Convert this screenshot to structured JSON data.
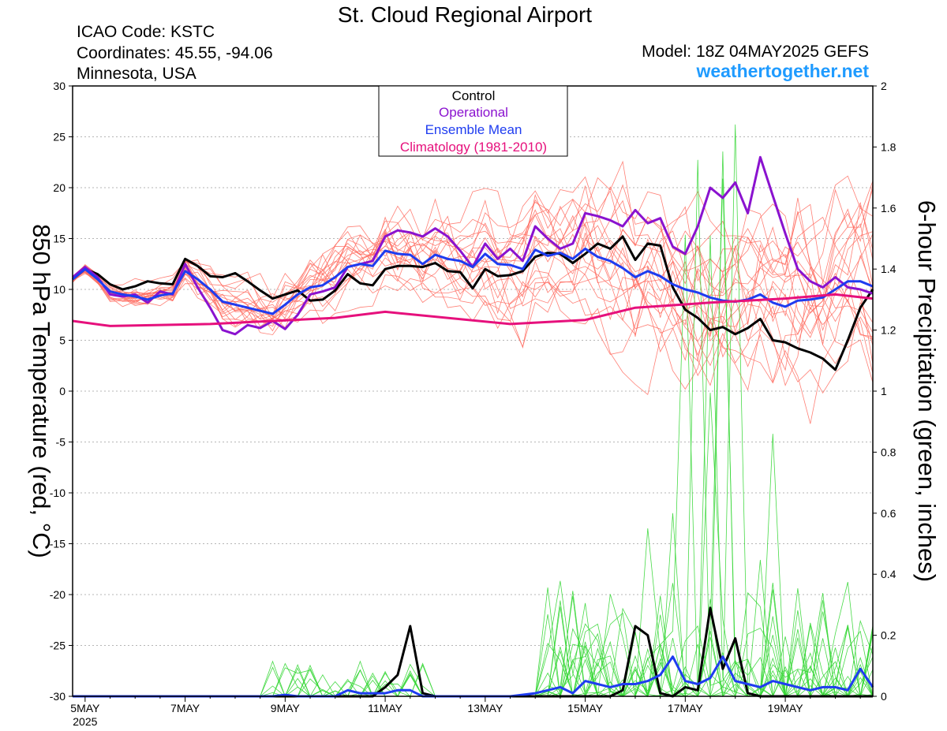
{
  "header": {
    "title": "St. Cloud Regional Airport",
    "icao": "ICAO Code: KSTC",
    "coords": "Coordinates: 45.55, -94.06",
    "region": "Minnesota, USA",
    "model": "Model: 18Z 04MAY2025 GEFS",
    "brand": "weathertogether.net"
  },
  "legend": {
    "items": [
      {
        "label": "Control",
        "color": "#000000"
      },
      {
        "label": "Operational",
        "color": "#8a12cf"
      },
      {
        "label": "Ensemble Mean",
        "color": "#1e3cf0"
      },
      {
        "label": "Climatology (1981-2010)",
        "color": "#e6107c"
      }
    ]
  },
  "colors": {
    "members_temp": "#ff6a5e",
    "members_precip": "#33d633",
    "control": "#000000",
    "operational": "#8a12cf",
    "mean": "#1e3cf0",
    "climatology": "#e6107c"
  },
  "chart_data": {
    "type": "line",
    "xlabel": "",
    "ylabel_left": "850 hPa Temperature (red, °C)",
    "ylabel_right": "6-hour Precipitation (green, inches)",
    "x_unit": "days after 00Z 5 May 2025 (6-hourly)",
    "x_range": [
      -0.25,
      15.75
    ],
    "ylim_left": [
      -30,
      30
    ],
    "ylim_right": [
      0,
      2
    ],
    "grid": "horizontal dotted",
    "x_ticks": [
      {
        "x": 0,
        "label": "5MAY",
        "label2": "2025"
      },
      {
        "x": 2,
        "label": "7MAY",
        "label2": ""
      },
      {
        "x": 4,
        "label": "9MAY",
        "label2": ""
      },
      {
        "x": 6,
        "label": "11MAY",
        "label2": ""
      },
      {
        "x": 8,
        "label": "13MAY",
        "label2": ""
      },
      {
        "x": 10,
        "label": "15MAY",
        "label2": ""
      },
      {
        "x": 12,
        "label": "17MAY",
        "label2": ""
      },
      {
        "x": 14,
        "label": "19MAY",
        "label2": ""
      }
    ],
    "y_ticks_left": [
      "30",
      "25",
      "20",
      "15",
      "10",
      "5",
      "0",
      "-5",
      "-10",
      "-15",
      "-20",
      "-25",
      "-30"
    ],
    "y_ticks_right": [
      "2",
      "1.8",
      "1.6",
      "1.4",
      "1.2",
      "1",
      "0.8",
      "0.6",
      "0.4",
      "0.2",
      "0"
    ],
    "series": [
      {
        "name": "Control",
        "axis": "left",
        "points": [
          [
            -0.25,
            11
          ],
          [
            0,
            12
          ],
          [
            0.25,
            11.5
          ],
          [
            0.5,
            10.5
          ],
          [
            0.75,
            10
          ],
          [
            1,
            10.3
          ],
          [
            1.25,
            10.8
          ],
          [
            1.5,
            10.6
          ],
          [
            1.75,
            10.5
          ],
          [
            2,
            13
          ],
          [
            2.25,
            12.3
          ],
          [
            2.5,
            11.3
          ],
          [
            2.75,
            11.2
          ],
          [
            3,
            11.6
          ],
          [
            3.25,
            10.8
          ],
          [
            3.5,
            9.9
          ],
          [
            3.75,
            9.1
          ],
          [
            4,
            9.5
          ],
          [
            4.25,
            9.9
          ],
          [
            4.5,
            8.9
          ],
          [
            4.75,
            9
          ],
          [
            5,
            9.9
          ],
          [
            5.25,
            11.5
          ],
          [
            5.5,
            10.6
          ],
          [
            5.75,
            10.4
          ],
          [
            6,
            12
          ],
          [
            6.25,
            12.3
          ],
          [
            6.5,
            12.3
          ],
          [
            6.75,
            12.2
          ],
          [
            7,
            12.6
          ],
          [
            7.25,
            11.8
          ],
          [
            7.5,
            11.7
          ],
          [
            7.75,
            10.1
          ],
          [
            8,
            12
          ],
          [
            8.25,
            11.3
          ],
          [
            8.5,
            11.4
          ],
          [
            8.75,
            11.8
          ],
          [
            9,
            13.2
          ],
          [
            9.25,
            13.6
          ],
          [
            9.5,
            13.5
          ],
          [
            9.75,
            12.6
          ],
          [
            10,
            13.5
          ],
          [
            10.25,
            14.5
          ],
          [
            10.5,
            14
          ],
          [
            10.75,
            15.2
          ],
          [
            11,
            12.9
          ],
          [
            11.25,
            14.5
          ],
          [
            11.5,
            14.3
          ],
          [
            11.75,
            10.2
          ],
          [
            12,
            8
          ],
          [
            12.25,
            7.2
          ],
          [
            12.5,
            6
          ],
          [
            12.75,
            6.3
          ],
          [
            13,
            5.6
          ],
          [
            13.25,
            6.2
          ],
          [
            13.5,
            7.1
          ],
          [
            13.75,
            5
          ],
          [
            14,
            4.8
          ],
          [
            14.25,
            4.2
          ],
          [
            14.5,
            3.8
          ],
          [
            14.75,
            3.2
          ],
          [
            15,
            2.1
          ],
          [
            15.25,
            5
          ],
          [
            15.5,
            8.2
          ],
          [
            15.75,
            10
          ]
        ]
      },
      {
        "name": "Operational",
        "axis": "left",
        "points": [
          [
            -0.25,
            11.2
          ],
          [
            0,
            12.2
          ],
          [
            0.25,
            11.2
          ],
          [
            0.5,
            9.5
          ],
          [
            0.75,
            9.3
          ],
          [
            1,
            9.5
          ],
          [
            1.25,
            8.7
          ],
          [
            1.5,
            9.8
          ],
          [
            1.75,
            9.5
          ],
          [
            2,
            12.5
          ],
          [
            2.25,
            10.2
          ],
          [
            2.5,
            8.2
          ],
          [
            2.75,
            6
          ],
          [
            3,
            5.6
          ],
          [
            3.25,
            6.5
          ],
          [
            3.5,
            6.2
          ],
          [
            3.75,
            6.9
          ],
          [
            4,
            6.1
          ],
          [
            4.25,
            7.5
          ],
          [
            4.5,
            9.5
          ],
          [
            4.75,
            9.8
          ],
          [
            5,
            10.2
          ],
          [
            5.25,
            12.2
          ],
          [
            5.5,
            12.5
          ],
          [
            5.75,
            12.8
          ],
          [
            6,
            15.2
          ],
          [
            6.25,
            15.8
          ],
          [
            6.5,
            15.6
          ],
          [
            6.75,
            15.2
          ],
          [
            7,
            16
          ],
          [
            7.25,
            15.2
          ],
          [
            7.5,
            13.8
          ],
          [
            7.75,
            12.2
          ],
          [
            8,
            14.5
          ],
          [
            8.25,
            13
          ],
          [
            8.5,
            14
          ],
          [
            8.75,
            12.8
          ],
          [
            9,
            16.2
          ],
          [
            9.25,
            15
          ],
          [
            9.5,
            14
          ],
          [
            9.75,
            14.5
          ],
          [
            10,
            17.5
          ],
          [
            10.25,
            17.2
          ],
          [
            10.5,
            16.8
          ],
          [
            10.75,
            16.2
          ],
          [
            11,
            17.8
          ],
          [
            11.25,
            16.5
          ],
          [
            11.5,
            17
          ],
          [
            11.75,
            14.2
          ],
          [
            12,
            13.5
          ],
          [
            12.25,
            16.2
          ],
          [
            12.5,
            20
          ],
          [
            12.75,
            19
          ],
          [
            13,
            20.5
          ],
          [
            13.25,
            17.5
          ],
          [
            13.5,
            23
          ],
          [
            13.75,
            19.2
          ],
          [
            14,
            15.5
          ],
          [
            14.25,
            12
          ],
          [
            14.5,
            10.8
          ],
          [
            14.75,
            10.2
          ],
          [
            15,
            11.2
          ],
          [
            15.25,
            10.2
          ],
          [
            15.5,
            10
          ],
          [
            15.75,
            9.6
          ]
        ]
      },
      {
        "name": "Ensemble Mean",
        "axis": "left",
        "points": [
          [
            -0.25,
            11
          ],
          [
            0,
            12
          ],
          [
            0.25,
            11
          ],
          [
            0.5,
            9.8
          ],
          [
            0.75,
            9.5
          ],
          [
            1,
            9.3
          ],
          [
            1.25,
            9
          ],
          [
            1.5,
            9.4
          ],
          [
            1.75,
            9.6
          ],
          [
            2,
            11.8
          ],
          [
            2.25,
            11
          ],
          [
            2.5,
            10
          ],
          [
            2.75,
            8.8
          ],
          [
            3,
            8.5
          ],
          [
            3.25,
            8.2
          ],
          [
            3.5,
            7.9
          ],
          [
            3.75,
            7.6
          ],
          [
            4,
            8.5
          ],
          [
            4.25,
            9.5
          ],
          [
            4.5,
            10.2
          ],
          [
            4.75,
            10.4
          ],
          [
            5,
            11.2
          ],
          [
            5.25,
            12.2
          ],
          [
            5.5,
            12.5
          ],
          [
            5.75,
            12.3
          ],
          [
            6,
            13.8
          ],
          [
            6.25,
            13.5
          ],
          [
            6.5,
            13.4
          ],
          [
            6.75,
            12.5
          ],
          [
            7,
            13.4
          ],
          [
            7.25,
            13
          ],
          [
            7.5,
            12.8
          ],
          [
            7.75,
            12.2
          ],
          [
            8,
            13.5
          ],
          [
            8.25,
            12.5
          ],
          [
            8.5,
            12.4
          ],
          [
            8.75,
            12
          ],
          [
            9,
            13.9
          ],
          [
            9.25,
            13.3
          ],
          [
            9.5,
            13.6
          ],
          [
            9.75,
            13
          ],
          [
            10,
            14
          ],
          [
            10.25,
            13.2
          ],
          [
            10.5,
            12.8
          ],
          [
            10.75,
            12.1
          ],
          [
            11,
            11.2
          ],
          [
            11.25,
            11.8
          ],
          [
            11.5,
            11.3
          ],
          [
            11.75,
            10.5
          ],
          [
            12,
            10
          ],
          [
            12.25,
            9.7
          ],
          [
            12.5,
            9.2
          ],
          [
            12.75,
            8.9
          ],
          [
            13,
            8.8
          ],
          [
            13.25,
            9
          ],
          [
            13.5,
            9.5
          ],
          [
            13.75,
            8.7
          ],
          [
            14,
            8.3
          ],
          [
            14.25,
            8.9
          ],
          [
            14.5,
            9
          ],
          [
            14.75,
            9.2
          ],
          [
            15,
            10
          ],
          [
            15.25,
            10.8
          ],
          [
            15.5,
            10.8
          ],
          [
            15.75,
            10.3
          ]
        ]
      },
      {
        "name": "Climatology (1981-2010)",
        "axis": "left",
        "points": [
          [
            -0.25,
            6.9
          ],
          [
            0.5,
            6.4
          ],
          [
            2.5,
            6.6
          ],
          [
            5,
            7.2
          ],
          [
            6,
            7.8
          ],
          [
            8.5,
            6.6
          ],
          [
            10,
            7
          ],
          [
            11,
            8.2
          ],
          [
            12.5,
            8.7
          ],
          [
            14,
            9.1
          ],
          [
            15,
            9.5
          ],
          [
            15.75,
            9.1
          ]
        ]
      },
      {
        "name": "Control",
        "axis": "right",
        "points": [
          [
            -0.25,
            0
          ],
          [
            5.75,
            0
          ],
          [
            6,
            0.03
          ],
          [
            6.25,
            0.07
          ],
          [
            6.5,
            0.23
          ],
          [
            6.75,
            0.01
          ],
          [
            7,
            0
          ],
          [
            10.25,
            0
          ],
          [
            10.5,
            0
          ],
          [
            10.75,
            0.02
          ],
          [
            11,
            0.23
          ],
          [
            11.25,
            0.2
          ],
          [
            11.5,
            0.01
          ],
          [
            11.75,
            0
          ],
          [
            12,
            0.03
          ],
          [
            12.25,
            0.02
          ],
          [
            12.5,
            0.29
          ],
          [
            12.75,
            0.09
          ],
          [
            13,
            0.19
          ],
          [
            13.25,
            0.01
          ],
          [
            13.5,
            0
          ],
          [
            15.75,
            0
          ]
        ]
      },
      {
        "name": "Ensemble Mean",
        "axis": "right",
        "points": [
          [
            -0.25,
            0
          ],
          [
            3.75,
            0
          ],
          [
            4,
            0.005
          ],
          [
            4.25,
            0
          ],
          [
            5,
            0
          ],
          [
            5.25,
            0.02
          ],
          [
            5.5,
            0.01
          ],
          [
            5.75,
            0.01
          ],
          [
            6,
            0.01
          ],
          [
            6.25,
            0.02
          ],
          [
            6.5,
            0.02
          ],
          [
            6.75,
            0
          ],
          [
            8.5,
            0
          ],
          [
            9,
            0.01
          ],
          [
            9.25,
            0.02
          ],
          [
            9.5,
            0.03
          ],
          [
            9.75,
            0.01
          ],
          [
            10,
            0.05
          ],
          [
            10.25,
            0.04
          ],
          [
            10.5,
            0.03
          ],
          [
            10.75,
            0.04
          ],
          [
            11,
            0.04
          ],
          [
            11.25,
            0.05
          ],
          [
            11.5,
            0.07
          ],
          [
            11.75,
            0.13
          ],
          [
            12,
            0.05
          ],
          [
            12.25,
            0.04
          ],
          [
            12.5,
            0.06
          ],
          [
            12.75,
            0.13
          ],
          [
            13,
            0.05
          ],
          [
            13.25,
            0.04
          ],
          [
            13.5,
            0.03
          ],
          [
            13.75,
            0.05
          ],
          [
            14,
            0.04
          ],
          [
            14.25,
            0.03
          ],
          [
            14.5,
            0.02
          ],
          [
            14.75,
            0.03
          ],
          [
            15,
            0.03
          ],
          [
            15.25,
            0.02
          ],
          [
            15.5,
            0.09
          ],
          [
            15.75,
            0.03
          ]
        ]
      }
    ],
    "members_note": "20 ensemble members (thin red temperature lines, thin green precipitation lines) — values approximated."
  }
}
